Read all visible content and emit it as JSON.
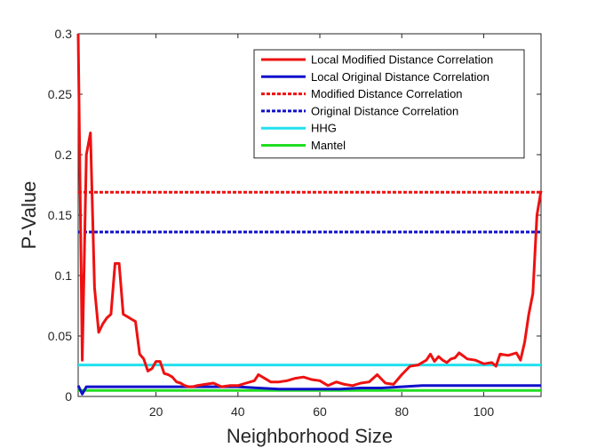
{
  "chart_data": {
    "type": "line",
    "title": "",
    "xlabel": "Neighborhood Size",
    "ylabel": "P-Value",
    "xlim": [
      1,
      114
    ],
    "ylim": [
      0,
      0.3
    ],
    "xticks": [
      20,
      40,
      60,
      80,
      100
    ],
    "xtick_labels": [
      "20",
      "40",
      "60",
      "80",
      "100"
    ],
    "yticks": [
      0,
      0.05,
      0.1,
      0.15,
      0.2,
      0.25,
      0.3
    ],
    "ytick_labels": [
      "0",
      "0.05",
      "0.1",
      "0.15",
      "0.2",
      "0.25",
      "0.3"
    ],
    "grid": false,
    "legend_position": "top-right",
    "series": [
      {
        "name": "Local Modified Distance Correlation",
        "color": "#ee1111",
        "style": "solid",
        "x": [
          1,
          2,
          3,
          4,
          5,
          6,
          7,
          8,
          9,
          10,
          11,
          12,
          13,
          14,
          15,
          16,
          17,
          18,
          19,
          20,
          21,
          22,
          23,
          24,
          25,
          26,
          27,
          28,
          29,
          30,
          32,
          34,
          36,
          38,
          40,
          42,
          44,
          45,
          46,
          48,
          50,
          52,
          54,
          56,
          58,
          60,
          62,
          64,
          66,
          68,
          70,
          72,
          74,
          76,
          78,
          80,
          82,
          84,
          86,
          87,
          88,
          89,
          90,
          91,
          92,
          93,
          94,
          96,
          98,
          100,
          102,
          103,
          104,
          106,
          108,
          109,
          110,
          111,
          112,
          113,
          114
        ],
        "values": [
          0.3,
          0.03,
          0.2,
          0.218,
          0.09,
          0.053,
          0.06,
          0.065,
          0.068,
          0.11,
          0.11,
          0.068,
          0.066,
          0.064,
          0.062,
          0.035,
          0.031,
          0.021,
          0.023,
          0.029,
          0.029,
          0.019,
          0.018,
          0.016,
          0.012,
          0.011,
          0.009,
          0.008,
          0.008,
          0.009,
          0.01,
          0.011,
          0.008,
          0.009,
          0.009,
          0.011,
          0.013,
          0.018,
          0.016,
          0.012,
          0.012,
          0.013,
          0.015,
          0.016,
          0.014,
          0.013,
          0.009,
          0.012,
          0.01,
          0.009,
          0.011,
          0.012,
          0.018,
          0.011,
          0.01,
          0.018,
          0.025,
          0.026,
          0.03,
          0.035,
          0.029,
          0.033,
          0.03,
          0.028,
          0.031,
          0.032,
          0.036,
          0.031,
          0.03,
          0.027,
          0.028,
          0.025,
          0.035,
          0.034,
          0.036,
          0.03,
          0.045,
          0.068,
          0.085,
          0.15,
          0.17
        ]
      },
      {
        "name": "Local Original Distance Correlation",
        "color": "#1010cc",
        "style": "solid",
        "x": [
          1,
          2,
          3,
          5,
          10,
          20,
          30,
          40,
          45,
          50,
          55,
          60,
          65,
          70,
          75,
          80,
          85,
          90,
          100,
          114
        ],
        "values": [
          0.009,
          0.002,
          0.008,
          0.008,
          0.008,
          0.008,
          0.008,
          0.008,
          0.007,
          0.006,
          0.006,
          0.006,
          0.006,
          0.007,
          0.007,
          0.008,
          0.009,
          0.009,
          0.009,
          0.009
        ]
      },
      {
        "name": "Modified Distance Correlation",
        "color": "#ee1111",
        "style": "dashed",
        "x": [
          1,
          114
        ],
        "values": [
          0.169,
          0.169
        ]
      },
      {
        "name": "Original Distance Correlation",
        "color": "#1010cc",
        "style": "dashed",
        "x": [
          1,
          114
        ],
        "values": [
          0.136,
          0.136
        ]
      },
      {
        "name": "HHG",
        "color": "#22e0ee",
        "style": "solid",
        "x": [
          1,
          114
        ],
        "values": [
          0.026,
          0.026
        ]
      },
      {
        "name": "Mantel",
        "color": "#22dd22",
        "style": "solid",
        "x": [
          1,
          114
        ],
        "values": [
          0.005,
          0.005
        ]
      }
    ]
  }
}
